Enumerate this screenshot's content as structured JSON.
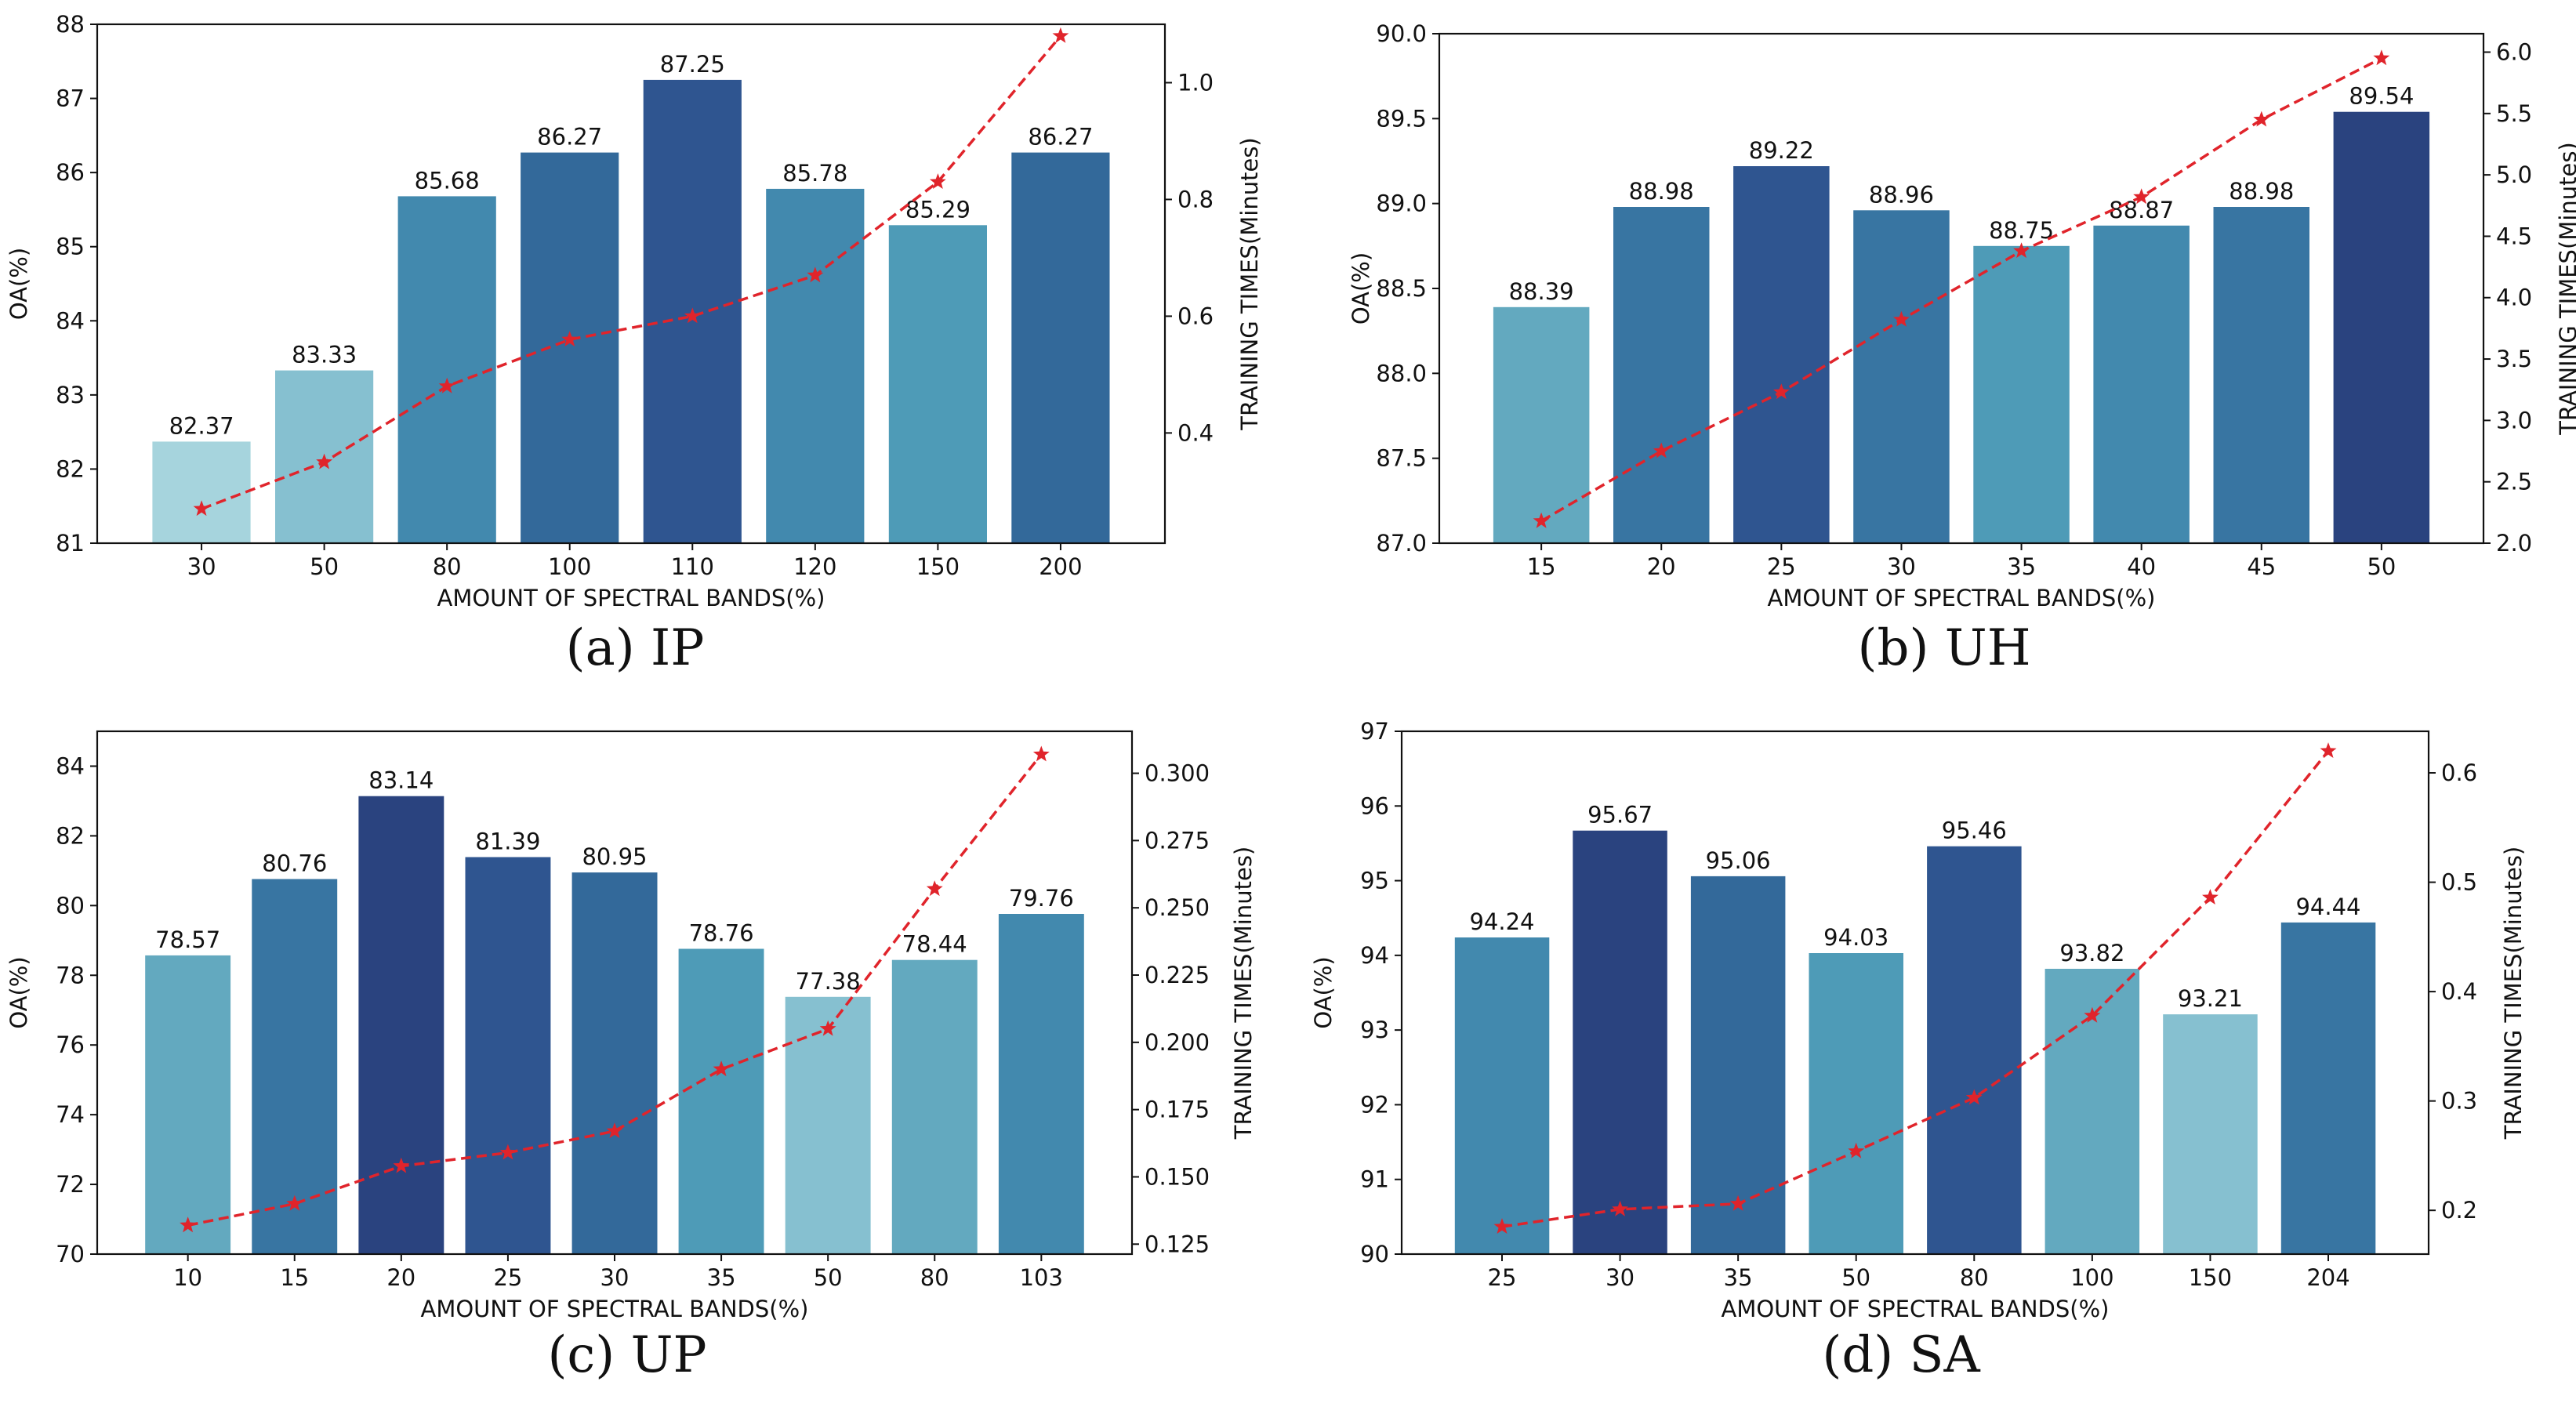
{
  "chart_data": [
    {
      "type": "bar",
      "caption": "(a)  IP",
      "xlabel": "AMOUNT OF SPECTRAL BANDS(%)",
      "ylabel": "OA(%)",
      "ylabel_right": "TRAINING TIMES(Minutes)",
      "categories": [
        "30",
        "50",
        "80",
        "100",
        "110",
        "120",
        "150",
        "200"
      ],
      "values": [
        82.37,
        83.33,
        85.68,
        86.27,
        87.25,
        85.78,
        85.29,
        86.27
      ],
      "value_labels": [
        "82.37",
        "83.33",
        "85.68",
        "86.27",
        "87.25",
        "85.78",
        "85.29",
        "86.27"
      ],
      "ylim": [
        81,
        88
      ],
      "yticks": [
        "81",
        "82",
        "83",
        "84",
        "85",
        "86",
        "87",
        "88"
      ],
      "series": [
        {
          "name": "Training time",
          "axis": "right",
          "style": "red dashed line with star markers",
          "values": [
            0.27,
            0.35,
            0.48,
            0.56,
            0.6,
            0.67,
            0.83,
            1.08
          ]
        }
      ],
      "y2lim": [
        0.2112,
        1.1
      ],
      "y2ticks": [
        "0.4",
        "0.6",
        "0.8",
        "1.0"
      ],
      "y2tick_values": [
        0.4,
        0.6,
        0.8,
        1.0
      ],
      "bar_colors": [
        "#a6d4dd",
        "#86c0d0",
        "#4289ae",
        "#33699a",
        "#2f5590",
        "#4289ae",
        "#4e9bb7",
        "#33699a"
      ],
      "line_color": "#e0242b"
    },
    {
      "type": "bar",
      "caption": "(b)  UH",
      "xlabel": "AMOUNT OF SPECTRAL BANDS(%)",
      "ylabel": "OA(%)",
      "ylabel_right": "TRAINING TIMES(Minutes)",
      "categories": [
        "15",
        "20",
        "25",
        "30",
        "35",
        "40",
        "45",
        "50"
      ],
      "values": [
        88.39,
        88.98,
        89.22,
        88.96,
        88.75,
        88.87,
        88.98,
        89.54
      ],
      "value_labels": [
        "88.39",
        "88.98",
        "89.22",
        "88.96",
        "88.75",
        "88.87",
        "88.98",
        "89.54"
      ],
      "ylim": [
        87.0,
        90.0
      ],
      "yticks": [
        "87.0",
        "87.5",
        "88.0",
        "88.5",
        "89.0",
        "89.5",
        "90.0"
      ],
      "series": [
        {
          "name": "Training time",
          "axis": "right",
          "style": "red dashed line with star markers",
          "values": [
            2.18,
            2.75,
            3.23,
            3.82,
            4.38,
            4.82,
            5.45,
            5.95
          ]
        }
      ],
      "y2lim": [
        2.0,
        6.15
      ],
      "y2ticks": [
        "2.0",
        "2.5",
        "3.0",
        "3.5",
        "4.0",
        "4.5",
        "5.0",
        "5.5",
        "6.0"
      ],
      "y2tick_values": [
        2.0,
        2.5,
        3.0,
        3.5,
        4.0,
        4.5,
        5.0,
        5.5,
        6.0
      ],
      "bar_colors": [
        "#63a9bf",
        "#3875a2",
        "#2f5590",
        "#3875a2",
        "#4e9bb7",
        "#4289ae",
        "#3875a2",
        "#2a437f"
      ],
      "line_color": "#e0242b"
    },
    {
      "type": "bar",
      "caption": "(c)  UP",
      "xlabel": "AMOUNT OF SPECTRAL BANDS(%)",
      "ylabel": "OA(%)",
      "ylabel_right": "TRAINING TIMES(Minutes)",
      "categories": [
        "10",
        "15",
        "20",
        "25",
        "30",
        "35",
        "50",
        "80",
        "103"
      ],
      "values": [
        78.57,
        80.76,
        83.14,
        81.39,
        80.95,
        78.76,
        77.38,
        78.44,
        79.76
      ],
      "value_labels": [
        "78.57",
        "80.76",
        "83.14",
        "81.39",
        "80.95",
        "78.76",
        "77.38",
        "78.44",
        "79.76"
      ],
      "ylim": [
        70,
        85
      ],
      "yticks": [
        "70",
        "72",
        "74",
        "76",
        "78",
        "80",
        "82",
        "84"
      ],
      "ytick_values": [
        70,
        72,
        74,
        76,
        78,
        80,
        82,
        84
      ],
      "series": [
        {
          "name": "Training time",
          "axis": "right",
          "style": "red dashed line with star markers",
          "values": [
            0.132,
            0.14,
            0.154,
            0.159,
            0.167,
            0.19,
            0.205,
            0.257,
            0.307
          ]
        }
      ],
      "y2lim": [
        0.1213,
        0.3156
      ],
      "y2ticks": [
        "0.125",
        "0.150",
        "0.175",
        "0.200",
        "0.225",
        "0.250",
        "0.275",
        "0.300"
      ],
      "y2tick_values": [
        0.125,
        0.15,
        0.175,
        0.2,
        0.225,
        0.25,
        0.275,
        0.3
      ],
      "bar_colors": [
        "#63a9bf",
        "#3875a2",
        "#2a437f",
        "#2f5590",
        "#33699a",
        "#4e9bb7",
        "#86c0d0",
        "#63a9bf",
        "#4289ae"
      ],
      "line_color": "#e0242b"
    },
    {
      "type": "bar",
      "caption": "(d)  SA",
      "xlabel": "AMOUNT OF SPECTRAL BANDS(%)",
      "ylabel": "OA(%)",
      "ylabel_right": "TRAINING TIMES(Minutes)",
      "categories": [
        "25",
        "30",
        "35",
        "50",
        "80",
        "100",
        "150",
        "204"
      ],
      "values": [
        94.24,
        95.67,
        95.06,
        94.03,
        95.46,
        93.82,
        93.21,
        94.44
      ],
      "value_labels": [
        "94.24",
        "95.67",
        "95.06",
        "94.03",
        "95.46",
        "93.82",
        "93.21",
        "94.44"
      ],
      "ylim": [
        90,
        97
      ],
      "yticks": [
        "90",
        "91",
        "92",
        "93",
        "94",
        "95",
        "96",
        "97"
      ],
      "series": [
        {
          "name": "Training time",
          "axis": "right",
          "style": "red dashed line with star markers",
          "values": [
            0.185,
            0.201,
            0.206,
            0.254,
            0.303,
            0.378,
            0.486,
            0.62
          ]
        }
      ],
      "y2lim": [
        0.16,
        0.638
      ],
      "y2ticks": [
        "0.2",
        "0.3",
        "0.4",
        "0.5",
        "0.6"
      ],
      "y2tick_values": [
        0.2,
        0.3,
        0.4,
        0.5,
        0.6
      ],
      "bar_colors": [
        "#4289ae",
        "#2a437f",
        "#33699a",
        "#4e9bb7",
        "#2f5590",
        "#63a9bf",
        "#86c0d0",
        "#3875a2"
      ],
      "line_color": "#e0242b"
    }
  ]
}
